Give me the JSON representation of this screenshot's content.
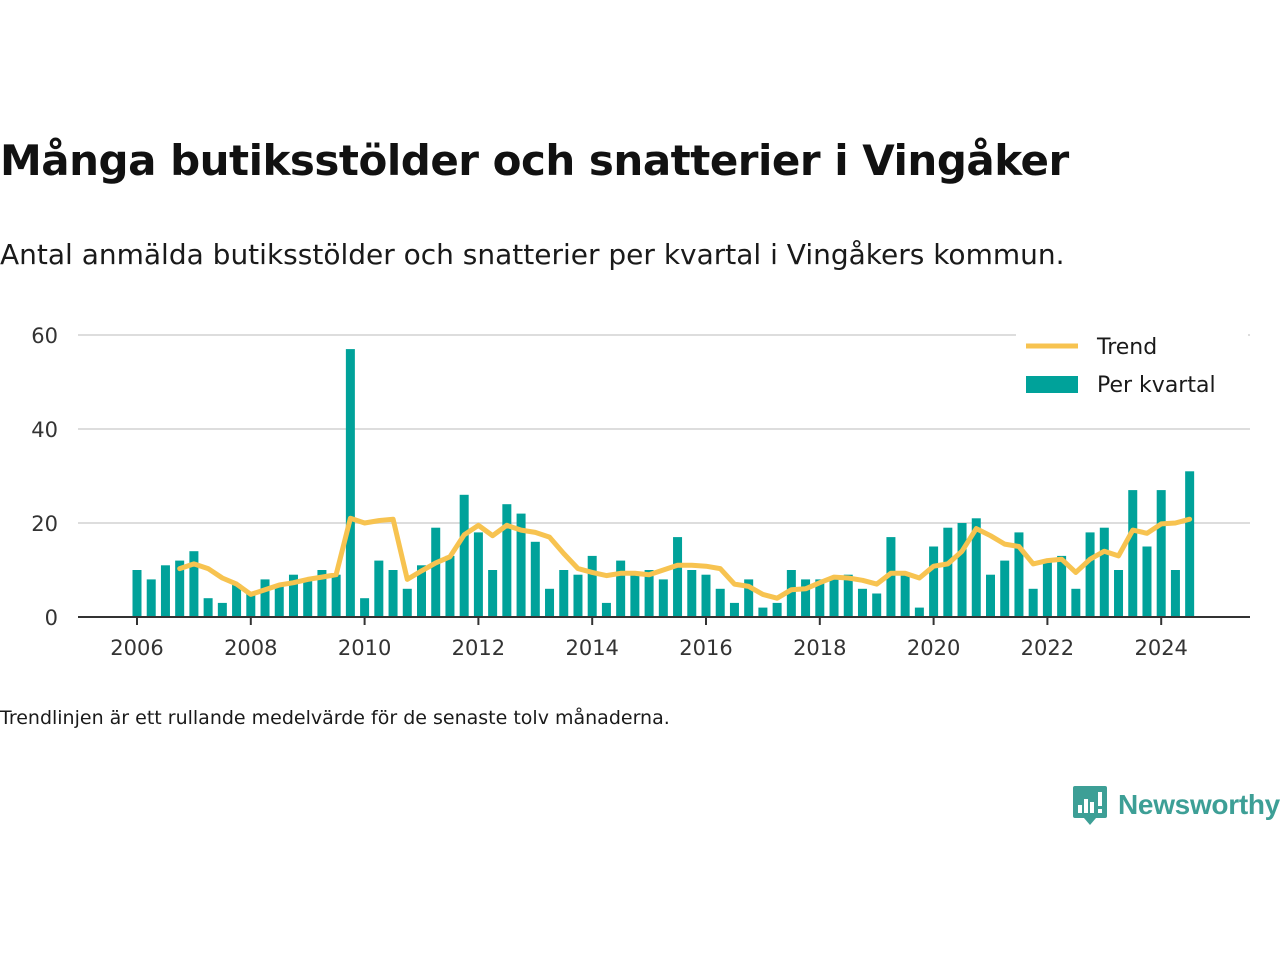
{
  "title": "Många butiksstölder och snatterier i Vingåker",
  "subtitle": "Antal anmälda butiksstölder och snatterier per kvartal i Vingåkers kommun.",
  "footnote": "Trendlinjen är ett rullande medelvärde för de senaste tolv månaderna.",
  "brand": {
    "name": "Newsworthy",
    "color": "#3d9f96"
  },
  "chart_data": {
    "type": "bar",
    "x_start": {
      "year": 2006,
      "quarter": 1
    },
    "xticks": [
      "2006",
      "2008",
      "2010",
      "2012",
      "2014",
      "2016",
      "2018",
      "2020",
      "2022",
      "2024"
    ],
    "yticks": [
      "0",
      "20",
      "40",
      "60"
    ],
    "ylim": [
      0,
      60
    ],
    "grid": true,
    "legend_position": "top-right",
    "colors": {
      "bars": "#00a29a",
      "trend": "#f7c350",
      "grid": "#dddddd",
      "axis": "#333333"
    },
    "series": [
      {
        "name": "Per kvartal",
        "kind": "bar",
        "values": [
          10,
          8,
          11,
          12,
          14,
          4,
          3,
          7,
          5,
          8,
          7,
          9,
          8,
          10,
          9,
          57,
          4,
          12,
          10,
          6,
          11,
          19,
          13,
          26,
          18,
          10,
          24,
          22,
          16,
          6,
          10,
          9,
          13,
          3,
          12,
          9,
          10,
          8,
          17,
          10,
          9,
          6,
          3,
          8,
          2,
          3,
          10,
          8,
          8,
          8,
          9,
          6,
          5,
          17,
          9,
          2,
          15,
          19,
          20,
          21,
          9,
          12,
          18,
          6,
          12,
          13,
          6,
          18,
          19,
          10,
          27,
          15,
          27,
          10,
          31
        ]
      },
      {
        "name": "Trend",
        "kind": "line",
        "values": [
          null,
          null,
          null,
          10.3,
          11.3,
          10.3,
          8.3,
          7.0,
          4.8,
          5.8,
          6.8,
          7.3,
          8.0,
          8.5,
          9.0,
          21.0,
          20.0,
          20.5,
          20.8,
          8.0,
          9.8,
          11.5,
          12.8,
          17.5,
          19.5,
          17.3,
          19.5,
          18.5,
          18.0,
          17.0,
          13.5,
          10.3,
          9.5,
          8.8,
          9.3,
          9.3,
          9.0,
          10.0,
          11.0,
          11.0,
          10.8,
          10.3,
          7.0,
          6.5,
          4.8,
          4.0,
          5.8,
          6.0,
          7.3,
          8.5,
          8.3,
          7.8,
          7.0,
          9.3,
          9.3,
          8.3,
          10.8,
          11.3,
          14.0,
          18.8,
          17.3,
          15.5,
          15.0,
          11.3,
          12.0,
          12.3,
          9.5,
          12.3,
          14.0,
          13.0,
          18.5,
          17.8,
          19.8,
          20.0,
          20.8
        ]
      }
    ]
  }
}
